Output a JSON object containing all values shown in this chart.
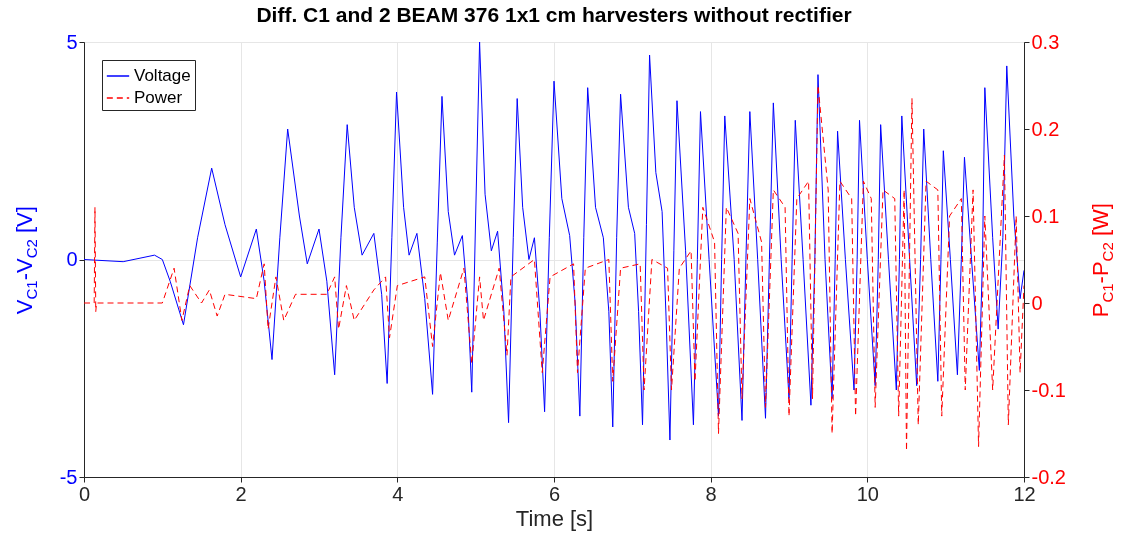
{
  "chart_data": {
    "type": "line",
    "title": "Diff. C1 and 2 BEAM 376 1x1 cm harvesters without rectifier",
    "xlabel": "Time [s]",
    "ylabel": "V$_{C1}$-V$_{C2}$ [V]",
    "y2label": "P$_{C1}$-P$_{C2}$ [W]",
    "xlim": [
      0,
      12
    ],
    "xticks": [
      0,
      2,
      4,
      6,
      8,
      10,
      12
    ],
    "ylim": [
      -5,
      5
    ],
    "yticks": [
      -5,
      0,
      5
    ],
    "y2lim": [
      -0.2,
      0.3
    ],
    "y2ticks": [
      -0.2,
      -0.1,
      0,
      0.1,
      0.2,
      0.3
    ],
    "grid": true,
    "legend": "top left",
    "series": [
      {
        "name": "Voltage",
        "color": "#0000ff",
        "line_style": "solid",
        "x": [
          0,
          0.5,
          0.9,
          1.0,
          1.1,
          1.27,
          1.45,
          1.63,
          1.8,
          2.0,
          2.2,
          2.3,
          2.4,
          2.5,
          2.6,
          2.75,
          2.85,
          3.0,
          3.1,
          3.2,
          3.28,
          3.36,
          3.45,
          3.55,
          3.7,
          3.8,
          3.87,
          3.93,
          3.99,
          4.08,
          4.15,
          4.25,
          4.35,
          4.45,
          4.51,
          4.57,
          4.65,
          4.73,
          4.83,
          4.9,
          4.95,
          5.0,
          5.05,
          5.12,
          5.2,
          5.28,
          5.36,
          5.42,
          5.48,
          5.53,
          5.6,
          5.68,
          5.75,
          5.82,
          5.88,
          5.94,
          6.0,
          6.1,
          6.2,
          6.27,
          6.33,
          6.38,
          6.43,
          6.53,
          6.63,
          6.7,
          6.75,
          6.8,
          6.85,
          6.95,
          7.03,
          7.08,
          7.13,
          7.18,
          7.22,
          7.3,
          7.38,
          7.43,
          7.48,
          7.53,
          7.57,
          7.68,
          7.78,
          7.83,
          7.87,
          7.98,
          8.1,
          8.14,
          8.18,
          8.3,
          8.4,
          8.45,
          8.5,
          8.6,
          8.7,
          8.75,
          8.8,
          8.9,
          9.0,
          9.04,
          9.08,
          9.18,
          9.28,
          9.33,
          9.37,
          9.46,
          9.55,
          9.59,
          9.62,
          9.72,
          9.83,
          9.87,
          9.9,
          10.0,
          10.1,
          10.14,
          10.17,
          10.27,
          10.37,
          10.41,
          10.44,
          10.54,
          10.63,
          10.68,
          10.72,
          10.81,
          10.9,
          10.94,
          10.97,
          11.06,
          11.15,
          11.2,
          11.24,
          11.33,
          11.43,
          11.47,
          11.5,
          11.6,
          11.67,
          11.73,
          11.78,
          11.87,
          11.95,
          12
        ],
        "values": [
          0,
          -0.05,
          0.1,
          0,
          -0.5,
          -1.5,
          0.5,
          2.1,
          0.8,
          -0.4,
          0.7,
          -0.5,
          -2.3,
          0.5,
          3.0,
          1.0,
          -0.1,
          0.7,
          -0.5,
          -2.65,
          0.5,
          3.1,
          1.2,
          0.1,
          0.6,
          -0.8,
          -2.85,
          0.5,
          3.85,
          1.2,
          0.1,
          0.6,
          -0.9,
          -3.1,
          0.4,
          3.75,
          1.1,
          0.1,
          0.55,
          -1.0,
          -3.05,
          1.0,
          5.0,
          1.5,
          0.2,
          0.65,
          -1.2,
          -3.75,
          0.5,
          3.7,
          1.2,
          0.0,
          0.5,
          -1.2,
          -3.5,
          0.5,
          4.1,
          1.4,
          0.55,
          -1.0,
          -3.6,
          0.5,
          3.95,
          1.2,
          0.5,
          -1.2,
          -3.85,
          0.5,
          3.8,
          1.2,
          0.6,
          -1.2,
          -3.8,
          0.8,
          4.7,
          2.0,
          1.1,
          -1.3,
          -4.15,
          0.2,
          3.65,
          0.2,
          -3.8,
          0.0,
          3.4,
          0.0,
          -3.6,
          0.0,
          3.3,
          0.0,
          -3.7,
          0.0,
          3.4,
          0.0,
          -3.65,
          0.0,
          3.6,
          0.0,
          -3.2,
          0.0,
          3.2,
          0.0,
          -3.35,
          0.0,
          4.25,
          0.0,
          -3.2,
          0.0,
          2.95,
          0.0,
          -3.0,
          0.0,
          3.2,
          0.0,
          -2.9,
          0.0,
          3.1,
          0.0,
          -3.0,
          0.0,
          3.3,
          0.0,
          -2.9,
          0.0,
          3.0,
          0.0,
          -2.8,
          0.0,
          2.5,
          0.0,
          -2.65,
          0.0,
          2.35,
          0.0,
          -2.55,
          0.0,
          3.95,
          0.5,
          -1.6,
          0.5,
          4.45,
          1.0,
          -0.9,
          -0.25
        ]
      },
      {
        "name": "Power",
        "color": "#ff0000",
        "line_style": "dashed",
        "axis": "y2",
        "x": [
          0,
          0.13,
          0.14,
          0.15,
          0.16,
          1.0,
          1.15,
          1.25,
          1.35,
          1.5,
          1.6,
          1.7,
          1.8,
          2.2,
          2.3,
          2.35,
          2.45,
          2.55,
          2.7,
          3.1,
          3.2,
          3.25,
          3.35,
          3.45,
          3.7,
          3.85,
          3.9,
          4.0,
          4.35,
          4.45,
          4.55,
          4.65,
          4.85,
          4.95,
          5.05,
          5.1,
          5.3,
          5.4,
          5.45,
          5.75,
          5.85,
          5.95,
          6.25,
          6.3,
          6.4,
          6.7,
          6.75,
          6.85,
          7.1,
          7.15,
          7.25,
          7.45,
          7.5,
          7.6,
          7.75,
          7.8,
          7.9,
          8.05,
          8.1,
          8.2,
          8.35,
          8.4,
          8.5,
          8.65,
          8.7,
          8.8,
          8.95,
          9.0,
          9.1,
          9.25,
          9.3,
          9.37,
          9.5,
          9.55,
          9.65,
          9.8,
          9.85,
          9.95,
          10.05,
          10.1,
          10.2,
          10.35,
          10.4,
          10.47,
          10.5,
          10.57,
          10.65,
          10.75,
          10.9,
          10.95,
          11.05,
          11.2,
          11.25,
          11.35,
          11.42,
          11.5,
          11.6,
          11.75,
          11.8,
          11.9,
          11.95,
          12
        ],
        "values": [
          0,
          0,
          0.11,
          -0.01,
          0,
          0,
          0.04,
          -0.02,
          0.02,
          0,
          0.015,
          -0.015,
          0.01,
          0.005,
          0.045,
          -0.03,
          0.03,
          -0.02,
          0.01,
          0.01,
          0.03,
          -0.03,
          0.02,
          -0.02,
          0.015,
          0.03,
          -0.04,
          0.02,
          0.03,
          -0.05,
          0.035,
          -0.02,
          0.04,
          -0.07,
          0.03,
          -0.02,
          0.04,
          -0.06,
          0.03,
          0.05,
          -0.08,
          0.03,
          0.045,
          -0.08,
          0.04,
          0.05,
          -0.09,
          0.04,
          0.045,
          -0.1,
          0.05,
          0.04,
          -0.1,
          0.04,
          0.06,
          -0.09,
          0.11,
          0.07,
          -0.15,
          0.11,
          0.08,
          -0.11,
          0.12,
          0.07,
          -0.12,
          0.13,
          0.11,
          -0.13,
          0.12,
          0.14,
          -0.11,
          0.25,
          0.13,
          -0.15,
          0.14,
          0.12,
          -0.13,
          0.14,
          0.12,
          -0.12,
          0.13,
          0.12,
          -0.13,
          0.13,
          -0.17,
          0.235,
          -0.14,
          0.14,
          0.13,
          -0.13,
          0.1,
          0.12,
          -0.1,
          0.13,
          -0.165,
          0.1,
          -0.1,
          0.17,
          -0.14,
          0.1,
          -0.08,
          0.02
        ]
      }
    ]
  }
}
